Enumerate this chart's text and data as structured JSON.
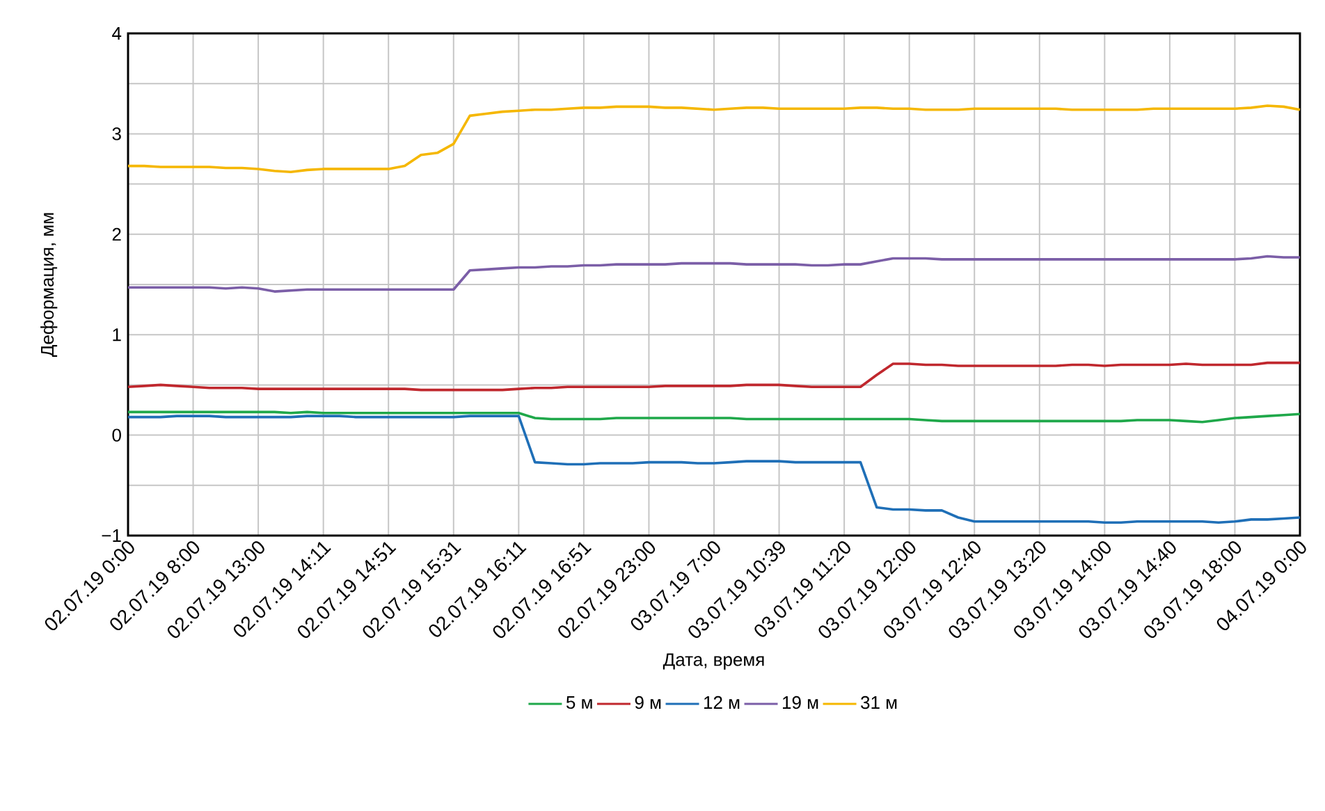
{
  "chart_data": {
    "type": "line",
    "xlabel": "Дата, время",
    "ylabel": "Деформация, мм",
    "categories": [
      "02.07.19 0:00",
      null,
      null,
      null,
      "02.07.19 8:00",
      null,
      null,
      null,
      "02.07.19 13:00",
      null,
      null,
      null,
      "02.07.19 14:11",
      null,
      null,
      null,
      "02.07.19 14:51",
      null,
      null,
      null,
      "02.07.19 15:31",
      null,
      null,
      null,
      "02.07.19 16:11",
      null,
      null,
      null,
      "02.07.19 16:51",
      null,
      null,
      null,
      "02.07.19 23:00",
      null,
      null,
      null,
      "03.07.19 7:00",
      null,
      null,
      null,
      "03.07.19 10:39",
      null,
      null,
      null,
      "03.07.19 11:20",
      null,
      null,
      null,
      "03.07.19 12:00",
      null,
      null,
      null,
      "03.07.19 12:40",
      null,
      null,
      null,
      "03.07.19 13:20",
      null,
      null,
      null,
      "03.07.19 14:00",
      null,
      null,
      null,
      "03.07.19 14:40",
      null,
      null,
      null,
      "03.07.19 18:00",
      null,
      null,
      null,
      "04.07.19 0:00"
    ],
    "series": [
      {
        "name": "5 м",
        "color": "#1fa84a",
        "values": [
          0.23,
          0.23,
          0.23,
          0.23,
          0.23,
          0.23,
          0.23,
          0.23,
          0.23,
          0.23,
          0.22,
          0.23,
          0.22,
          0.22,
          0.22,
          0.22,
          0.22,
          0.22,
          0.22,
          0.22,
          0.22,
          0.22,
          0.22,
          0.22,
          0.22,
          0.17,
          0.16,
          0.16,
          0.16,
          0.16,
          0.17,
          0.17,
          0.17,
          0.17,
          0.17,
          0.17,
          0.17,
          0.17,
          0.16,
          0.16,
          0.16,
          0.16,
          0.16,
          0.16,
          0.16,
          0.16,
          0.16,
          0.16,
          0.16,
          0.15,
          0.14,
          0.14,
          0.14,
          0.14,
          0.14,
          0.14,
          0.14,
          0.14,
          0.14,
          0.14,
          0.14,
          0.14,
          0.15,
          0.15,
          0.15,
          0.14,
          0.13,
          0.15,
          0.17,
          0.18,
          0.19,
          0.2,
          0.21
        ]
      },
      {
        "name": "9 м",
        "color": "#c0272d",
        "values": [
          0.48,
          0.49,
          0.5,
          0.49,
          0.48,
          0.47,
          0.47,
          0.47,
          0.46,
          0.46,
          0.46,
          0.46,
          0.46,
          0.46,
          0.46,
          0.46,
          0.46,
          0.46,
          0.45,
          0.45,
          0.45,
          0.45,
          0.45,
          0.45,
          0.46,
          0.47,
          0.47,
          0.48,
          0.48,
          0.48,
          0.48,
          0.48,
          0.48,
          0.49,
          0.49,
          0.49,
          0.49,
          0.49,
          0.5,
          0.5,
          0.5,
          0.49,
          0.48,
          0.48,
          0.48,
          0.48,
          0.6,
          0.71,
          0.71,
          0.7,
          0.7,
          0.69,
          0.69,
          0.69,
          0.69,
          0.69,
          0.69,
          0.69,
          0.7,
          0.7,
          0.69,
          0.7,
          0.7,
          0.7,
          0.7,
          0.71,
          0.7,
          0.7,
          0.7,
          0.7,
          0.72,
          0.72,
          0.72
        ]
      },
      {
        "name": "12 м",
        "color": "#1f6fb7",
        "values": [
          0.18,
          0.18,
          0.18,
          0.19,
          0.19,
          0.19,
          0.18,
          0.18,
          0.18,
          0.18,
          0.18,
          0.19,
          0.19,
          0.19,
          0.18,
          0.18,
          0.18,
          0.18,
          0.18,
          0.18,
          0.18,
          0.19,
          0.19,
          0.19,
          0.19,
          -0.27,
          -0.28,
          -0.29,
          -0.29,
          -0.28,
          -0.28,
          -0.28,
          -0.27,
          -0.27,
          -0.27,
          -0.28,
          -0.28,
          -0.27,
          -0.26,
          -0.26,
          -0.26,
          -0.27,
          -0.27,
          -0.27,
          -0.27,
          -0.27,
          -0.72,
          -0.74,
          -0.74,
          -0.75,
          -0.75,
          -0.82,
          -0.86,
          -0.86,
          -0.86,
          -0.86,
          -0.86,
          -0.86,
          -0.86,
          -0.86,
          -0.87,
          -0.87,
          -0.86,
          -0.86,
          -0.86,
          -0.86,
          -0.86,
          -0.87,
          -0.86,
          -0.84,
          -0.84,
          -0.83,
          -0.82
        ]
      },
      {
        "name": "19 м",
        "color": "#7b5ea7",
        "values": [
          1.47,
          1.47,
          1.47,
          1.47,
          1.47,
          1.47,
          1.46,
          1.47,
          1.46,
          1.43,
          1.44,
          1.45,
          1.45,
          1.45,
          1.45,
          1.45,
          1.45,
          1.45,
          1.45,
          1.45,
          1.45,
          1.64,
          1.65,
          1.66,
          1.67,
          1.67,
          1.68,
          1.68,
          1.69,
          1.69,
          1.7,
          1.7,
          1.7,
          1.7,
          1.71,
          1.71,
          1.71,
          1.71,
          1.7,
          1.7,
          1.7,
          1.7,
          1.69,
          1.69,
          1.7,
          1.7,
          1.73,
          1.76,
          1.76,
          1.76,
          1.75,
          1.75,
          1.75,
          1.75,
          1.75,
          1.75,
          1.75,
          1.75,
          1.75,
          1.75,
          1.75,
          1.75,
          1.75,
          1.75,
          1.75,
          1.75,
          1.75,
          1.75,
          1.75,
          1.76,
          1.78,
          1.77,
          1.77
        ]
      },
      {
        "name": "31 м",
        "color": "#f5b700",
        "values": [
          2.68,
          2.68,
          2.67,
          2.67,
          2.67,
          2.67,
          2.66,
          2.66,
          2.65,
          2.63,
          2.62,
          2.64,
          2.65,
          2.65,
          2.65,
          2.65,
          2.65,
          2.68,
          2.79,
          2.81,
          2.9,
          3.18,
          3.2,
          3.22,
          3.23,
          3.24,
          3.24,
          3.25,
          3.26,
          3.26,
          3.27,
          3.27,
          3.27,
          3.26,
          3.26,
          3.25,
          3.24,
          3.25,
          3.26,
          3.26,
          3.25,
          3.25,
          3.25,
          3.25,
          3.25,
          3.26,
          3.26,
          3.25,
          3.25,
          3.24,
          3.24,
          3.24,
          3.25,
          3.25,
          3.25,
          3.25,
          3.25,
          3.25,
          3.24,
          3.24,
          3.24,
          3.24,
          3.24,
          3.25,
          3.25,
          3.25,
          3.25,
          3.25,
          3.25,
          3.26,
          3.28,
          3.27,
          3.24
        ]
      }
    ],
    "ylim": [
      -1,
      4
    ],
    "yticks": [
      {
        "value": -1,
        "label": "−1"
      },
      {
        "value": -0.5,
        "label": null
      },
      0,
      {
        "value": 0.5,
        "label": null
      },
      1,
      {
        "value": 1.5,
        "label": null
      },
      2,
      {
        "value": 2.5,
        "label": null
      },
      3,
      {
        "value": 3.5,
        "label": null
      },
      4
    ],
    "grid": true,
    "legend": "bottom"
  }
}
